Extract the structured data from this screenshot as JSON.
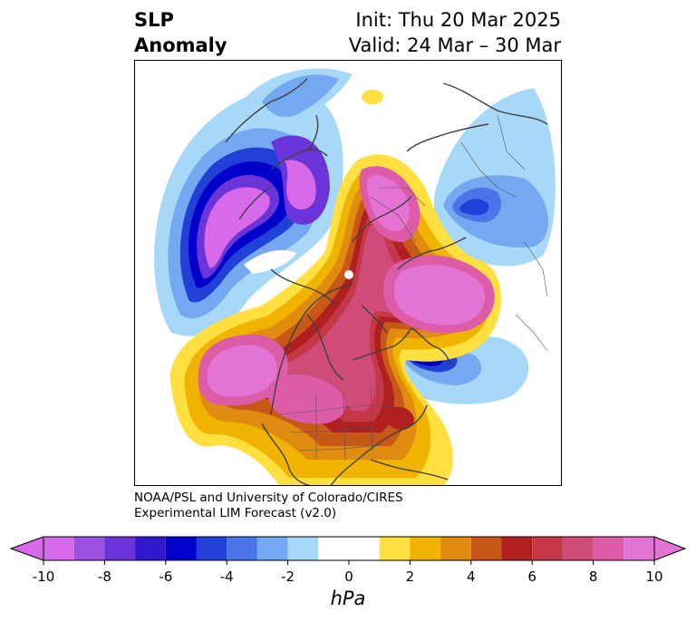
{
  "title": {
    "left_line1": "SLP",
    "left_line2": "Anomaly",
    "right_line1": "Init: Thu 20 Mar 2025",
    "right_line2": "Valid: 24 Mar – 30 Mar"
  },
  "credit": {
    "line1": "NOAA/PSL and University of Colorado/CIRES",
    "line2": "Experimental LIM Forecast (v2.0)"
  },
  "colorbar": {
    "unit": "hPa",
    "tick_labels": [
      "-10",
      "-8",
      "-6",
      "-4",
      "-2",
      "0",
      "2",
      "4",
      "6",
      "8",
      "10"
    ],
    "levels": [
      -10,
      -9,
      -8,
      -7,
      -6,
      -5,
      -4,
      -3,
      -2,
      -1,
      1,
      2,
      3,
      4,
      5,
      6,
      7,
      8,
      9,
      10
    ],
    "colors": [
      "#d66ae8",
      "#9c52e0",
      "#6a34d8",
      "#3218cc",
      "#0000c8",
      "#2040d8",
      "#4a74e8",
      "#74a8f0",
      "#a8d8f8",
      "#ffffff",
      "#ffe040",
      "#f0b400",
      "#e08c10",
      "#c85818",
      "#b02020",
      "#c43848",
      "#d04c78",
      "#dc5ca8",
      "#e474d4"
    ]
  }
}
